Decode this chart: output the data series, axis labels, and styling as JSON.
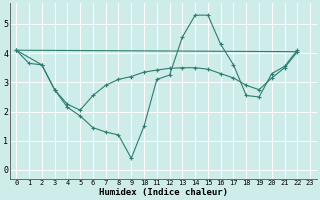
{
  "xlabel": "Humidex (Indice chaleur)",
  "bg_color": "#cdecea",
  "line_color": "#2e7d6e",
  "grid_color": "#ffffff",
  "xlim": [
    -0.5,
    23.5
  ],
  "ylim": [
    -0.3,
    5.7
  ],
  "xticks": [
    0,
    1,
    2,
    3,
    4,
    5,
    6,
    7,
    8,
    9,
    10,
    11,
    12,
    13,
    14,
    15,
    16,
    17,
    18,
    19,
    20,
    21,
    22,
    23
  ],
  "yticks": [
    0,
    1,
    2,
    3,
    4,
    5
  ],
  "line1_x": [
    0,
    1,
    2,
    3,
    4,
    5,
    6,
    7,
    8,
    9,
    10,
    11,
    12,
    13,
    14,
    15,
    16,
    17,
    18,
    19,
    20,
    21,
    22
  ],
  "line1_y": [
    4.1,
    3.65,
    3.6,
    2.75,
    2.15,
    1.85,
    1.45,
    1.3,
    1.2,
    0.4,
    1.5,
    3.1,
    3.25,
    4.55,
    5.3,
    5.3,
    4.3,
    3.6,
    2.55,
    2.5,
    3.3,
    3.55,
    4.1
  ],
  "line2_x": [
    0,
    2,
    3,
    4,
    5,
    6,
    7,
    8,
    9,
    10,
    11,
    12,
    13,
    14,
    15,
    16,
    17,
    18,
    19,
    20,
    21,
    22
  ],
  "line2_y": [
    4.1,
    3.6,
    2.75,
    2.25,
    2.05,
    2.55,
    2.9,
    3.1,
    3.2,
    3.35,
    3.42,
    3.48,
    3.5,
    3.5,
    3.45,
    3.3,
    3.15,
    2.9,
    2.75,
    3.15,
    3.5,
    4.05
  ],
  "line3_x": [
    0,
    22
  ],
  "line3_y": [
    4.1,
    4.05
  ]
}
